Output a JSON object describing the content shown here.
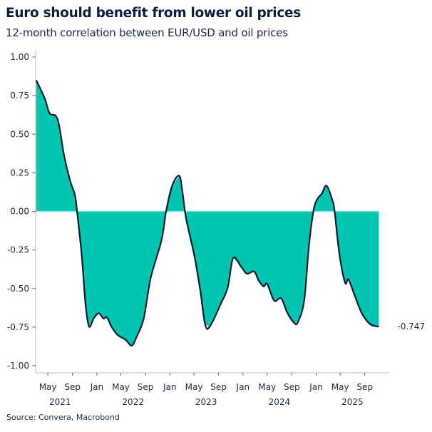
{
  "header": {
    "title": "Euro should benefit from lower oil prices",
    "subtitle": "12-month correlation between EUR/USD and oil prices"
  },
  "footer": {
    "source": "Source: Convera, Macrobond"
  },
  "colors": {
    "fill": "#00c5b1",
    "line": "#0b1a33",
    "zero_line": "#7fe0d6",
    "last_value_label": "#00c5b1",
    "axis": "#bdbdbd"
  },
  "chart_data": {
    "type": "area",
    "title": "Euro should benefit from lower oil prices",
    "subtitle": "12-month correlation between EUR/USD and oil prices",
    "xlabel": "",
    "ylabel": "",
    "ylim": [
      -1.0,
      1.0
    ],
    "xlim": [
      "2021-03-01",
      "2026-01-01"
    ],
    "grid": false,
    "legend": "none",
    "y_ticks": [
      "1.00",
      "0.75",
      "0.50",
      "0.25",
      "0.00",
      "-0.25",
      "-0.50",
      "-0.75",
      "-1.00"
    ],
    "x_ticks": [
      {
        "date": "2021-05-01",
        "label": "May"
      },
      {
        "date": "2021-09-01",
        "label": "Sep"
      },
      {
        "date": "2022-01-01",
        "label": "Jan"
      },
      {
        "date": "2022-05-01",
        "label": "May"
      },
      {
        "date": "2022-09-01",
        "label": "Sep"
      },
      {
        "date": "2023-01-01",
        "label": "Jan"
      },
      {
        "date": "2023-05-01",
        "label": "May"
      },
      {
        "date": "2023-09-01",
        "label": "Sep"
      },
      {
        "date": "2024-01-01",
        "label": "Jan"
      },
      {
        "date": "2024-05-01",
        "label": "May"
      },
      {
        "date": "2024-09-01",
        "label": "Sep"
      },
      {
        "date": "2025-01-01",
        "label": "Jan"
      },
      {
        "date": "2025-05-01",
        "label": "May"
      },
      {
        "date": "2025-09-01",
        "label": "Sep"
      }
    ],
    "year_labels": [
      {
        "date": "2021-07-01",
        "label": "2021"
      },
      {
        "date": "2022-07-01",
        "label": "2022"
      },
      {
        "date": "2023-07-01",
        "label": "2023"
      },
      {
        "date": "2024-07-01",
        "label": "2024"
      },
      {
        "date": "2025-07-01",
        "label": "2025"
      }
    ],
    "last_value_label": "-0.747",
    "x": [
      "2021-03-04",
      "2021-04-16",
      "2021-05-10",
      "2021-06-09",
      "2021-06-27",
      "2021-07-20",
      "2021-08-20",
      "2021-09-13",
      "2021-09-24",
      "2021-10-18",
      "2021-11-05",
      "2021-11-23",
      "2021-12-16",
      "2022-01-10",
      "2022-02-03",
      "2022-02-20",
      "2022-03-15",
      "2022-04-14",
      "2022-05-25",
      "2022-06-24",
      "2022-07-17",
      "2022-08-23",
      "2022-09-27",
      "2022-11-20",
      "2022-12-13",
      "2023-01-13",
      "2023-02-17",
      "2023-03-05",
      "2023-03-23",
      "2023-05-04",
      "2023-06-03",
      "2023-06-26",
      "2023-07-19",
      "2023-09-12",
      "2023-10-17",
      "2023-11-13",
      "2023-12-21",
      "2024-01-21",
      "2024-02-26",
      "2024-03-19",
      "2024-04-13",
      "2024-05-01",
      "2024-06-05",
      "2024-07-10",
      "2024-08-09",
      "2024-09-14",
      "2024-10-02",
      "2024-11-02",
      "2024-11-25",
      "2024-12-18",
      "2025-01-05",
      "2025-01-29",
      "2025-02-22",
      "2025-03-22",
      "2025-04-03",
      "2025-04-27",
      "2025-05-26",
      "2025-06-11",
      "2025-07-13",
      "2025-08-18",
      "2025-09-29",
      "2025-11-10"
    ],
    "y": [
      0.85,
      0.73,
      0.635,
      0.62,
      0.553,
      0.37,
      0.2,
      0.107,
      0.0,
      -0.293,
      -0.6,
      -0.747,
      -0.694,
      -0.66,
      -0.694,
      -0.686,
      -0.747,
      -0.8,
      -0.832,
      -0.87,
      -0.817,
      -0.694,
      -0.432,
      -0.186,
      0.0,
      0.169,
      0.23,
      0.122,
      -0.047,
      -0.293,
      -0.524,
      -0.732,
      -0.747,
      -0.6,
      -0.493,
      -0.301,
      -0.355,
      -0.404,
      -0.389,
      -0.447,
      -0.486,
      -0.47,
      -0.578,
      -0.563,
      -0.655,
      -0.724,
      -0.717,
      -0.578,
      -0.232,
      0.0,
      0.076,
      0.115,
      0.166,
      0.076,
      0.0,
      -0.278,
      -0.463,
      -0.44,
      -0.547,
      -0.663,
      -0.732,
      -0.747
    ]
  }
}
